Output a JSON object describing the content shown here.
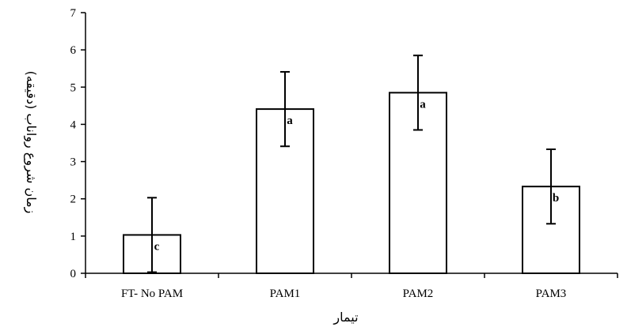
{
  "chart_data": {
    "type": "bar",
    "title": "",
    "xlabel": "تیمار",
    "ylabel": "زمان شروع رواناب (دقیقه)",
    "ylim": [
      0,
      7
    ],
    "yticks": [
      0,
      1,
      2,
      3,
      4,
      5,
      6,
      7
    ],
    "grid": false,
    "legend": "none",
    "categories": [
      "FT- No PAM",
      "PAM1",
      "PAM2",
      "PAM3"
    ],
    "values": [
      1.03,
      4.41,
      4.85,
      2.33
    ],
    "error": [
      1.0,
      1.0,
      1.0,
      1.0
    ],
    "significance": [
      "c",
      "a",
      "a",
      "b"
    ],
    "bar_fill": "#ffffff",
    "bar_stroke": "#000000"
  }
}
